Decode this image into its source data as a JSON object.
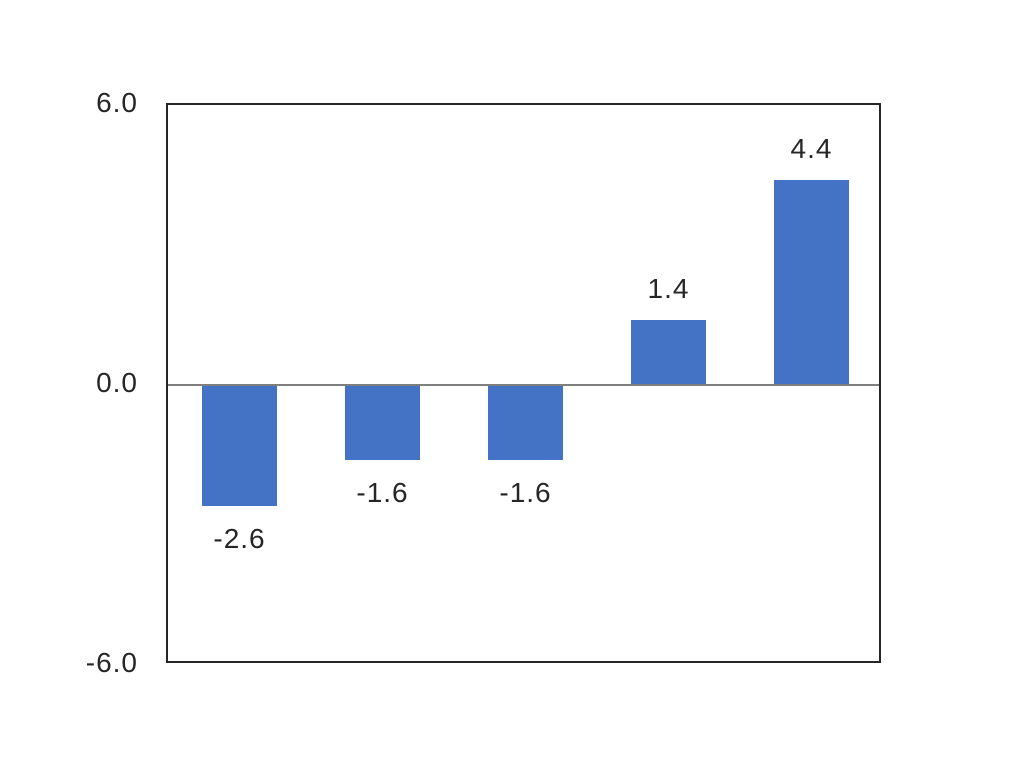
{
  "chart_data": {
    "type": "bar",
    "title": "",
    "xlabel": "",
    "ylabel": "",
    "values": [
      -2.6,
      -1.6,
      -1.6,
      1.4,
      4.4
    ],
    "data_labels": [
      "-2.6",
      "-1.6",
      "-1.6",
      "1.4",
      "4.4"
    ],
    "y_ticks": [
      {
        "value": 6.0,
        "label": "6.0"
      },
      {
        "value": 0.0,
        "label": "0.0"
      },
      {
        "value": -6.0,
        "label": "-6.0"
      }
    ],
    "ylim": [
      -6.0,
      6.0
    ],
    "grid": "zero-line-only",
    "legend_position": "none",
    "category_axis_labels": "none",
    "bar_color": "#4472C4",
    "zero_line_color": "#7f7f7f",
    "border_color": "#262626",
    "text_color": "#262626",
    "background_color": "#ffffff"
  }
}
